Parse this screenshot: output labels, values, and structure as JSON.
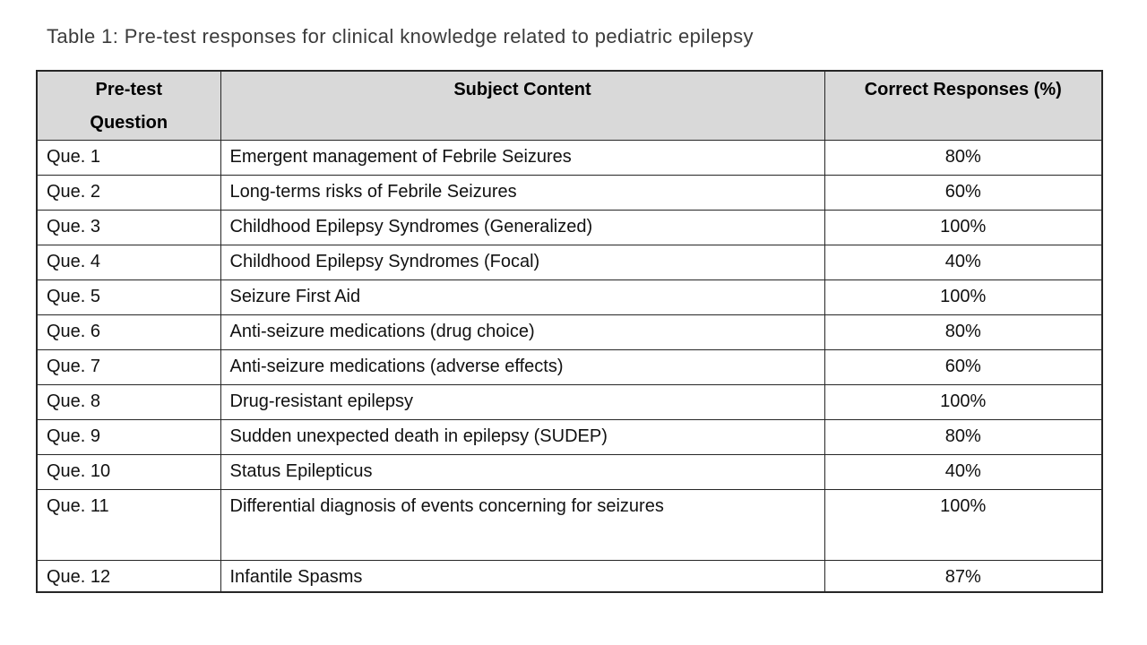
{
  "title": "Table 1: Pre-test responses for clinical knowledge related to pediatric epilepsy",
  "colors": {
    "header_bg": "#d9d9d9",
    "border": "#262626",
    "title_text": "#3b3b3b",
    "body_text": "#111111",
    "page_bg": "#ffffff"
  },
  "table": {
    "headers": [
      "Pre-test Question",
      "Subject Content",
      "Correct Responses (%)"
    ],
    "rows": [
      {
        "question": "Que. 1",
        "subject": "Emergent management of Febrile Seizures",
        "correct": "80%"
      },
      {
        "question": "Que. 2",
        "subject": "Long-terms risks of Febrile Seizures",
        "correct": "60%"
      },
      {
        "question": "Que. 3",
        "subject": "Childhood Epilepsy Syndromes (Generalized)",
        "correct": "100%"
      },
      {
        "question": "Que. 4",
        "subject": "Childhood Epilepsy Syndromes (Focal)",
        "correct": "40%"
      },
      {
        "question": "Que. 5",
        "subject": "Seizure First Aid",
        "correct": "100%"
      },
      {
        "question": "Que. 6",
        "subject": "Anti-seizure medications (drug choice)",
        "correct": "80%"
      },
      {
        "question": "Que. 7",
        "subject": "Anti-seizure medications (adverse effects)",
        "correct": "60%"
      },
      {
        "question": "Que. 8",
        "subject": "Drug-resistant epilepsy",
        "correct": "100%"
      },
      {
        "question": "Que. 9",
        "subject": "Sudden unexpected death in epilepsy (SUDEP)",
        "correct": "80%"
      },
      {
        "question": "Que. 10",
        "subject": "Status Epilepticus",
        "correct": "40%"
      },
      {
        "question": "Que. 11",
        "subject": "Differential diagnosis of events concerning for seizures",
        "correct": "100%"
      },
      {
        "question": "Que. 12",
        "subject": "Infantile Spasms",
        "correct": "87%"
      }
    ]
  }
}
